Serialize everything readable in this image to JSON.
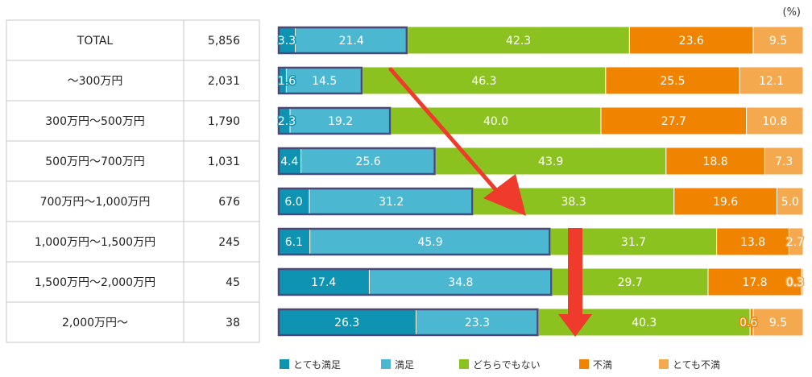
{
  "chart_data": {
    "type": "bar",
    "orientation": "horizontal",
    "stacked": true,
    "percent_stacked": true,
    "unit": "(%)",
    "table_rows": [
      {
        "label": "TOTAL",
        "n": "5,856"
      },
      {
        "label": "〜300万円",
        "n": "2,031"
      },
      {
        "label": "300万円〜500万円",
        "n": "1,790"
      },
      {
        "label": "500万円〜700万円",
        "n": "1,031"
      },
      {
        "label": "700万円〜1,000万円",
        "n": "676"
      },
      {
        "label": "1,000万円〜1,500万円",
        "n": "245"
      },
      {
        "label": "1,500万円〜2,000万円",
        "n": "45"
      },
      {
        "label": "2,000万円〜",
        "n": "38"
      }
    ],
    "categories": [
      "TOTAL",
      "〜300万円",
      "300万円〜500万円",
      "500万円〜700万円",
      "700万円〜1,000万円",
      "1,000万円〜1,500万円",
      "1,500万円〜2,000万円",
      "2,000万円〜"
    ],
    "series": [
      {
        "name": "とても満足",
        "color": "#0e93b3",
        "values": [
          3.3,
          1.6,
          2.3,
          4.4,
          6.0,
          6.1,
          17.4,
          26.3
        ]
      },
      {
        "name": "満足",
        "color": "#4bb7d0",
        "values": [
          21.4,
          14.5,
          19.2,
          25.6,
          31.2,
          45.9,
          34.8,
          23.3
        ]
      },
      {
        "name": "どちらでもない",
        "color": "#8cc21f",
        "values": [
          42.3,
          46.3,
          40.0,
          43.9,
          38.3,
          31.7,
          29.7,
          40.3
        ]
      },
      {
        "name": "不満",
        "color": "#f08300",
        "values": [
          23.6,
          25.5,
          27.7,
          18.8,
          19.6,
          13.8,
          17.8,
          0.6
        ]
      },
      {
        "name": "とても不満",
        "color": "#f5a94e",
        "values": [
          9.5,
          12.1,
          10.8,
          7.3,
          5.0,
          2.7,
          0.3,
          9.5
        ]
      }
    ],
    "value_labels": [
      [
        "3.3",
        "21.4",
        "42.3",
        "23.6",
        "9.5"
      ],
      [
        "1.6",
        "14.5",
        "46.3",
        "25.5",
        "12.1"
      ],
      [
        "2.3",
        "19.2",
        "40.0",
        "27.7",
        "10.8"
      ],
      [
        "4.4",
        "25.6",
        "43.9",
        "18.8",
        "7.3"
      ],
      [
        "6.0",
        "31.2",
        "38.3",
        "19.6",
        "5.0"
      ],
      [
        "6.1",
        "45.9",
        "31.7",
        "13.8",
        "2.7"
      ],
      [
        "17.4",
        "34.8",
        "29.7",
        "17.8",
        "0.3"
      ],
      [
        "26.3",
        "23.3",
        "40.3",
        "0.6",
        "9.5"
      ]
    ],
    "highlight_series": [
      "とても満足",
      "満足"
    ],
    "highlight_color": "#4a4a7a",
    "arrow_color": "#ee3b2b",
    "xlim": [
      0,
      100
    ],
    "grid": false,
    "legend_position": "bottom"
  }
}
